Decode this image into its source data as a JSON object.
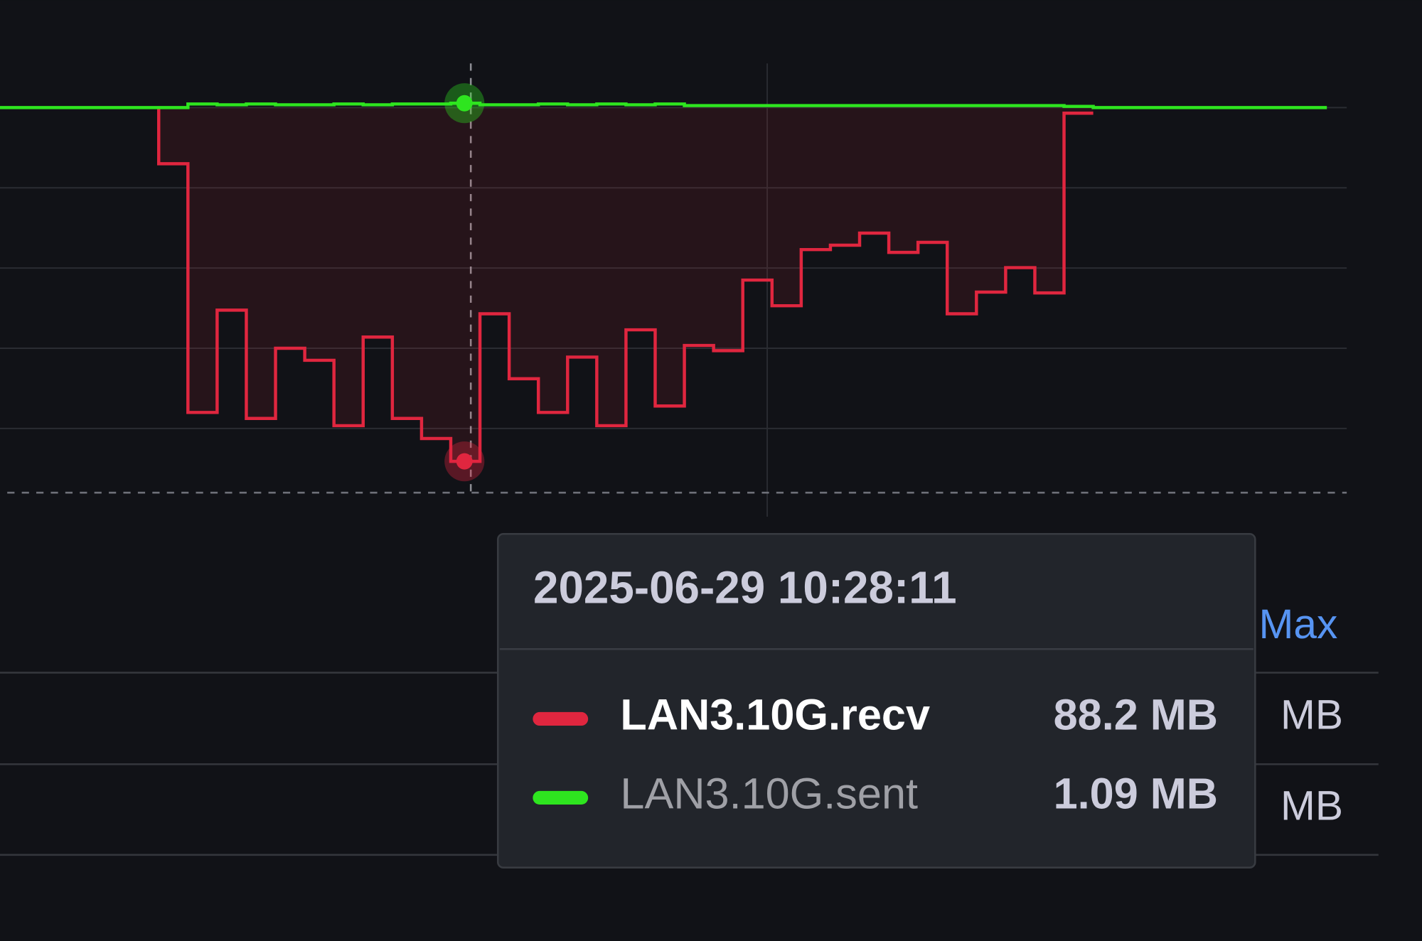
{
  "chart_data": {
    "type": "step-line",
    "ylim": [
      -102,
      11
    ],
    "yticks": [
      0,
      -20,
      -40,
      -60,
      -80
    ],
    "grid": true,
    "threshold": -96,
    "xlim": [
      -0.435,
      45.68
    ],
    "hover_index": 15,
    "series": [
      {
        "name": "LAN3.10G.recv",
        "color": "#e0263f",
        "transform": "negative-Y",
        "fill_opacity": 0.1,
        "values": [
          null,
          null,
          null,
          null,
          null,
          14,
          76,
          50.5,
          77.5,
          60,
          63,
          79.3,
          57.2,
          77.5,
          82.5,
          88.2,
          51.4,
          67.6,
          76,
          62.2,
          79.3,
          55.4,
          74.4,
          59.3,
          60.6,
          43,
          49.4,
          35.4,
          34.3,
          31.3,
          36.1,
          33.6,
          51.4,
          46,
          39.9,
          46.2,
          1.4,
          null,
          null,
          null,
          null,
          null,
          null,
          null,
          null
        ]
      },
      {
        "name": "LAN3.10G.sent",
        "color": "#2ee51f",
        "values": [
          0,
          0,
          0,
          0,
          0,
          0,
          0.9,
          0.7,
          0.9,
          0.7,
          0.7,
          0.9,
          0.7,
          0.9,
          0.9,
          1.09,
          0.7,
          0.7,
          0.9,
          0.7,
          0.9,
          0.7,
          0.9,
          0.5,
          0.5,
          0.5,
          0.5,
          0.5,
          0.5,
          0.5,
          0.5,
          0.5,
          0.5,
          0.5,
          0.5,
          0.5,
          0.3,
          0,
          0,
          0,
          0,
          0,
          0,
          0,
          0
        ]
      }
    ],
    "tooltip": {
      "time": "2025-06-29 10:28:11",
      "value_labels": [
        "88.2 MB",
        "1.09 MB"
      ]
    }
  },
  "legend": {
    "header": "Max",
    "rows": [
      "MB",
      "MB"
    ]
  }
}
